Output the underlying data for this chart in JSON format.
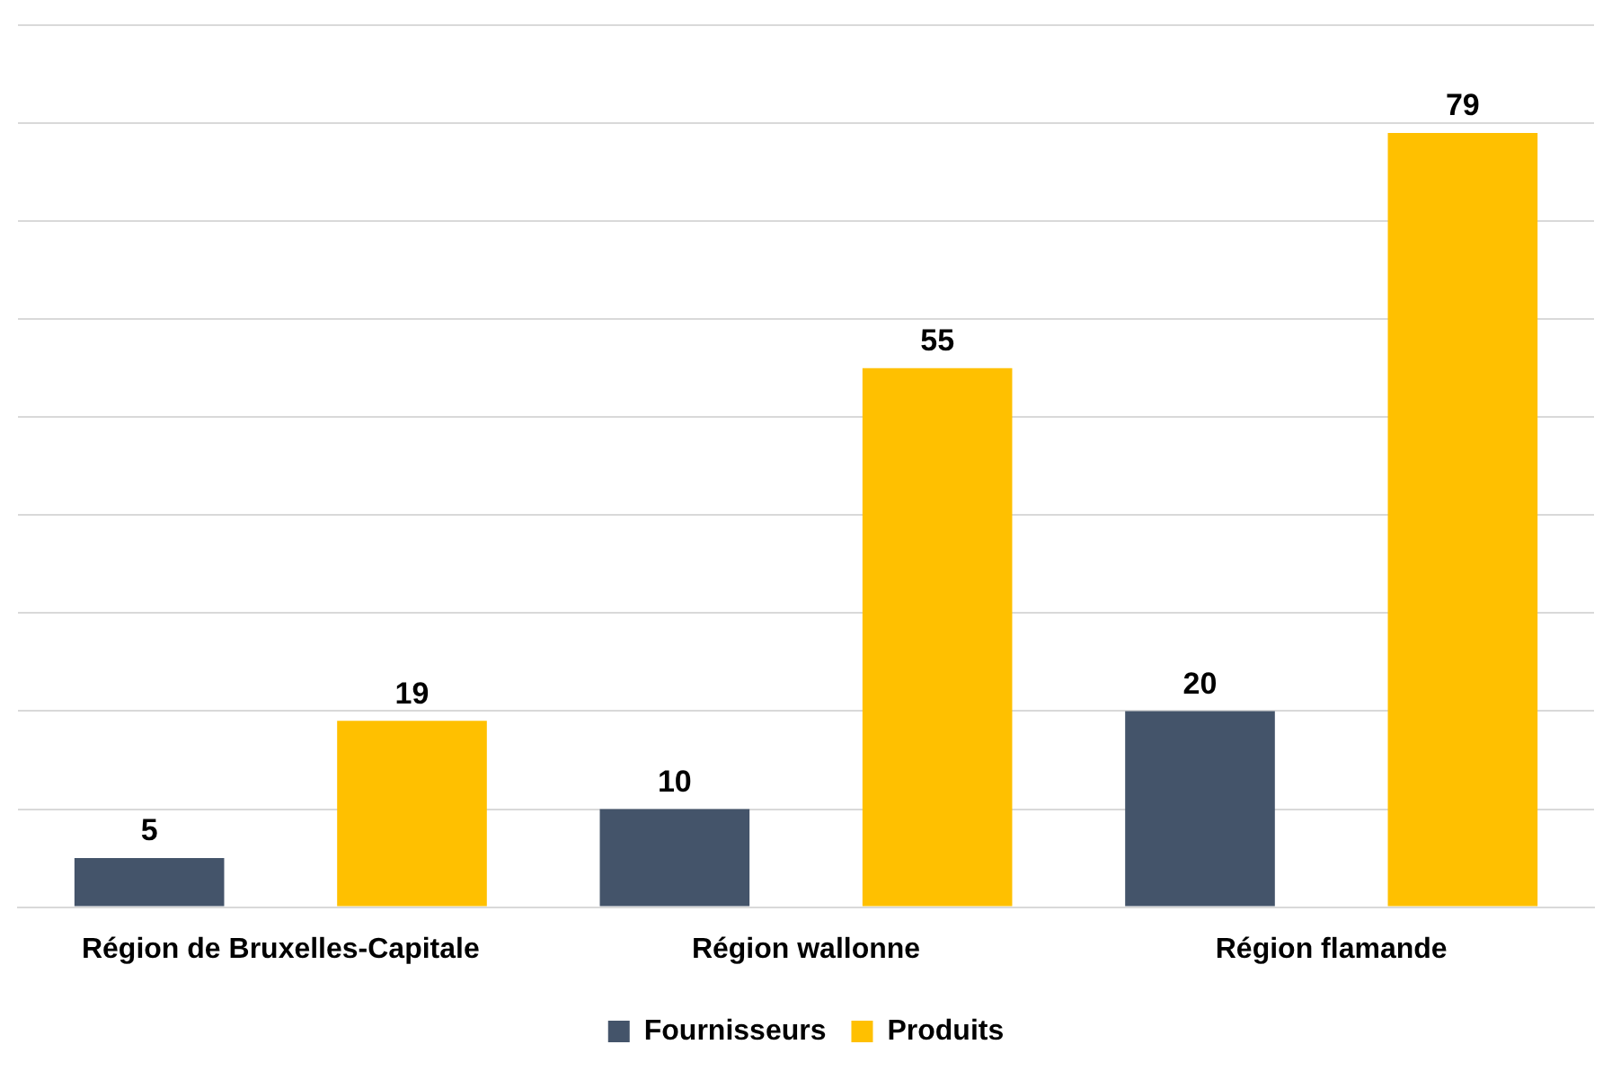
{
  "chart_data": {
    "type": "bar",
    "categories": [
      "Région de Bruxelles-Capitale",
      "Région wallonne",
      "Région flamande"
    ],
    "series": [
      {
        "name": "Fournisseurs",
        "color": "#44546a",
        "values": [
          5,
          10,
          20
        ]
      },
      {
        "name": "Produits",
        "color": "#ffc000",
        "values": [
          19,
          55,
          79
        ]
      }
    ],
    "ylim": [
      0,
      90
    ],
    "yticks": [
      0,
      10,
      20,
      30,
      40,
      50,
      60,
      70,
      80,
      90
    ],
    "tick_labels": "x",
    "grid": "y",
    "legend": "bottom",
    "data_labels": true
  }
}
